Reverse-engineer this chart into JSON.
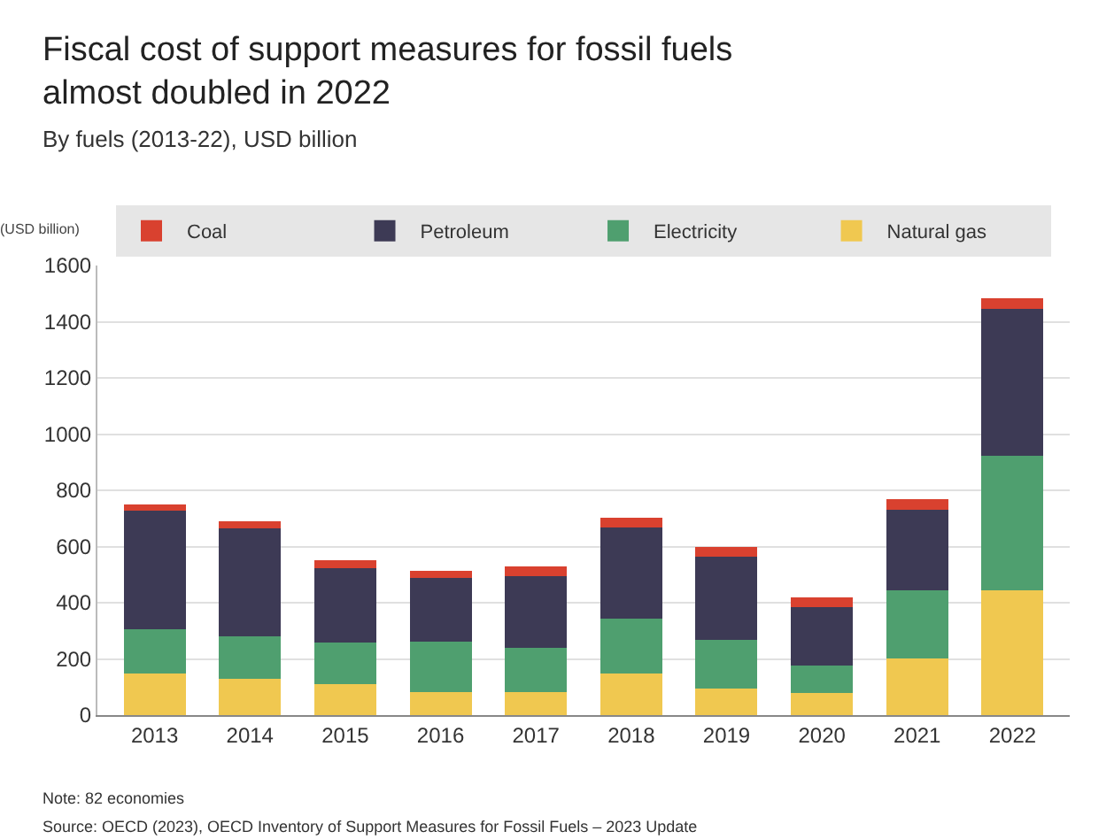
{
  "chart_data": {
    "type": "bar",
    "title": "Fiscal cost of support measures for fossil fuels\nalmost doubled in 2022",
    "subtitle": "By fuels (2013-22), USD billion",
    "ylabel": "(USD billion)",
    "categories": [
      "2013",
      "2014",
      "2015",
      "2016",
      "2017",
      "2018",
      "2019",
      "2020",
      "2021",
      "2022"
    ],
    "stacked": true,
    "series": [
      {
        "name": "Natural gas",
        "color": "#f0c850",
        "values": [
          147,
          128,
          110,
          83,
          83,
          147,
          94,
          79,
          202,
          444
        ]
      },
      {
        "name": "Electricity",
        "color": "#4f9f6f",
        "values": [
          158,
          151,
          147,
          178,
          157,
          195,
          175,
          98,
          242,
          479
        ]
      },
      {
        "name": "Petroleum",
        "color": "#3d3a55",
        "values": [
          422,
          385,
          266,
          226,
          255,
          326,
          295,
          206,
          287,
          523
        ]
      },
      {
        "name": "Coal",
        "color": "#d9412f",
        "values": [
          23,
          26,
          27,
          26,
          33,
          33,
          33,
          35,
          39,
          37
        ]
      }
    ],
    "ylim": [
      0,
      1600
    ],
    "yticks": [
      0,
      200,
      400,
      600,
      800,
      1000,
      1200,
      1400,
      1600
    ],
    "grid": "y",
    "legend": "top",
    "annotations": [
      "Note: 82 economies",
      "Source: OECD (2023), OECD Inventory of Support Measures for Fossil Fuels – 2023 Update"
    ]
  }
}
